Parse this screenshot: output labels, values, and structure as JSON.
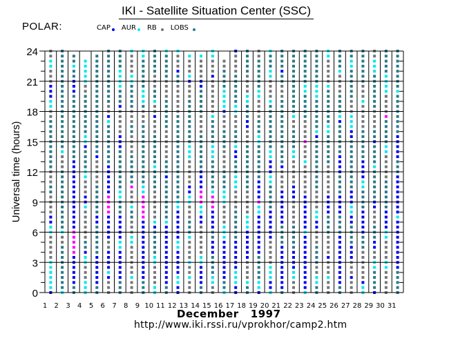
{
  "header": {
    "title": "IKI - Satellite Situation Center (SSC)",
    "satellite": "POLAR:"
  },
  "footer": {
    "url": "http://www.iki.rssi.ru/vprokhor/camp2.htm"
  },
  "chart_data": {
    "type": "scatter",
    "title": "IKI - Satellite Situation Center (SSC)",
    "xlabel": "December   1997",
    "ylabel": "Universal time (hours)",
    "xlim": [
      1,
      32
    ],
    "ylim": [
      0,
      24
    ],
    "x_ticks": [
      "1",
      "2",
      "3",
      "4",
      "5",
      "6",
      "7",
      "8",
      "9",
      "10",
      "11",
      "12",
      "13",
      "14",
      "15",
      "16",
      "17",
      "18",
      "19",
      "20",
      "21",
      "22",
      "23",
      "24",
      "25",
      "26",
      "27",
      "28",
      "29",
      "30",
      "31"
    ],
    "y_ticks": [
      "0",
      "3",
      "6",
      "9",
      "12",
      "15",
      "18",
      "21",
      "24"
    ],
    "y_minor_step_hours": 1,
    "grid": true,
    "legend": [
      {
        "code": "C",
        "label": "CAP",
        "color": "#0000ee"
      },
      {
        "code": "A",
        "label": "AUR",
        "color": "#00e8ee"
      },
      {
        "code": "R",
        "label": "RB",
        "color": "#767676"
      },
      {
        "code": "L",
        "label": "LOBS",
        "color": "#2a7a85"
      }
    ],
    "extra_colors": {
      "M": "#ff00ff"
    },
    "slot_hours": 0.5,
    "days": [
      {
        "day": 1,
        "seq": "C1A6R5A2C2R4L2R3L10R2A2C3R3A2R2A2C1R4A1"
      },
      {
        "day": 2,
        "seq": "A1L9R2A1L12R3A1L21"
      },
      {
        "day": 3,
        "seq": "L2C6M5C8C6L2L7L4C3L2A1L2"
      },
      {
        "day": 4,
        "seq": "A3R3A2C1L2R6A1C2R3A2L4C1A2L3L5R2A3A2"
      },
      {
        "day": 5,
        "seq": "L2C6L6C2L6R5C1L9L11"
      },
      {
        "day": 6,
        "seq": "R3C1A1C4R2C5M4C6L8A1C1R2L11"
      },
      {
        "day": 7,
        "seq": "L3C6A2C5L3A2L8C3R5C1L3A4L4"
      },
      {
        "day": 8,
        "seq": "R3A1R6A2R3L2A1R3M1L6R4L2R3L5A2R4A2L2"
      },
      {
        "day": 9,
        "seq": "L3C12M5A2L5L7R3L1A3L6A3L2"
      },
      {
        "day": 10,
        "seq": "A2R4A2L5C1A1R6L4A1L6R3C1R2A1L2R3L6"
      },
      {
        "day": 11,
        "seq": "L2C12A1L8C1L3R6L6R4L5A1"
      },
      {
        "day": 12,
        "seq": "C2A2C5A2C6A2L3L14R6L2C1R3A1"
      },
      {
        "day": 13,
        "seq": "R3A1R2A1R4A1L3R3A2C2R5A3L9R3C1A1R3A1"
      },
      {
        "day": 14,
        "seq": "L2C4A2R6C2A2M3C4L7R4L5C2R4A1"
      },
      {
        "day": 15,
        "seq": "R2A2L4C3L2C4M3A1L6A3L5A1R7C1R3A2"
      },
      {
        "day": 16,
        "seq": "A1L2C8A3R4A3L4R4L4R3C1A4L4R2"
      },
      {
        "day": 17,
        "seq": "C2A3C6L6R4A3L3C2A1L3R3A2L6R4C1A1"
      },
      {
        "day": 18,
        "seq": "L2A1R4C6A3R5L5L4R3C2L3A2R4L5"
      },
      {
        "day": 19,
        "seq": "C1A2L5C8A2M1C4L7A2L3R4A2L6R2"
      },
      {
        "day": 20,
        "seq": "A1C2A3R5C6L5A2C3A2L6L3A1R4A2L3A2"
      },
      {
        "day": 21,
        "seq": "L1C9L4C7R4C1L6L7R3L2C1L4"
      },
      {
        "day": 22,
        "seq": "R3A2C4L5R5C3R5A2L4R2A1L4L9"
      },
      {
        "day": 23,
        "seq": "A1C11A1C7R6A1R3M1R4L5A2L7"
      },
      {
        "day": 24,
        "seq": "L2A2R2L4R3C2A2R4L5L5C1A1L3L3A3L7"
      },
      {
        "day": 25,
        "seq": "R3A1R3C1R4L4C4R6L6A2L7A1R5A2"
      },
      {
        "day": 26,
        "seq": "L2C10L4C4L4C4L6C1A1L4R4A1L4"
      },
      {
        "day": 27,
        "seq": "R3C1R3C3L4C2A2C3L7L3C2A3R3L6A2L2"
      },
      {
        "day": 28,
        "seq": "A2C1R6L3C5L4A2C4L6R5A1R3L7"
      },
      {
        "day": 29,
        "seq": "C1L4A2R2C2L3R3C2L6A1L4C1L2R4L7A3R2C1"
      },
      {
        "day": 30,
        "seq": "R5A2R4A2C4L6R5A2L5M1R4A4L5"
      },
      {
        "day": 31,
        "seq": "L5C10A1C8L3C5L6L2A1L7L2"
      }
    ]
  }
}
